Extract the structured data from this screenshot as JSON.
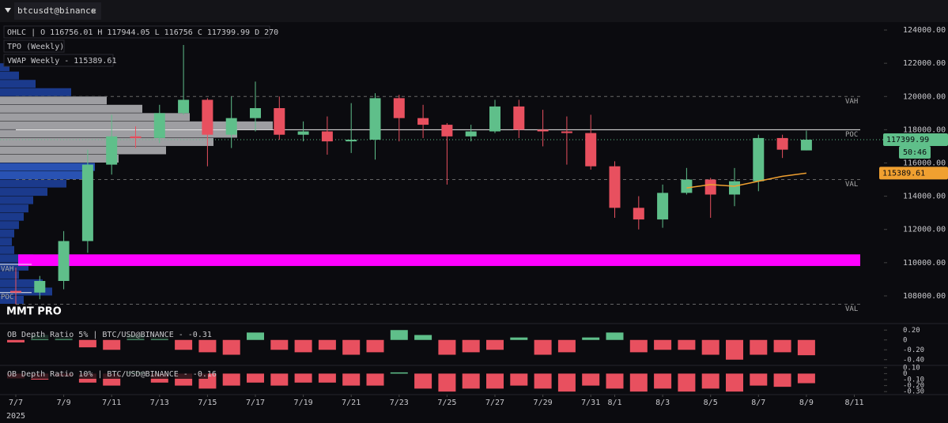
{
  "header": {
    "tab": "btcusdt@binance",
    "countdown": "50:46",
    "brand": "MMT PRO"
  },
  "chart_data": [
    {
      "type": "candlestick",
      "legend_lines": [
        "OHLC | O 116756.01 H 117944.05 L 116756 C 117399.99 D 270",
        "TPO (Weekly)",
        "VWAP Weekly - 115389.61"
      ],
      "x": [
        "2025-07-07",
        "2025-07-08",
        "2025-07-09",
        "2025-07-10",
        "2025-07-11",
        "2025-07-12",
        "2025-07-13",
        "2025-07-14",
        "2025-07-15",
        "2025-07-16",
        "2025-07-17",
        "2025-07-18",
        "2025-07-19",
        "2025-07-20",
        "2025-07-21",
        "2025-07-22",
        "2025-07-23",
        "2025-07-24",
        "2025-07-25",
        "2025-07-26",
        "2025-07-27",
        "2025-07-28",
        "2025-07-29",
        "2025-07-30",
        "2025-07-31",
        "2025-08-01",
        "2025-08-02",
        "2025-08-03",
        "2025-08-04",
        "2025-08-05",
        "2025-08-06",
        "2025-08-07",
        "2025-08-08",
        "2025-08-09"
      ],
      "open": [
        108300,
        108200,
        108900,
        111300,
        115900,
        117600,
        117500,
        119000,
        119800,
        117700,
        118700,
        119300,
        117700,
        117900,
        117300,
        117400,
        119900,
        118700,
        118300,
        117600,
        117900,
        119400,
        118000,
        117900,
        117800,
        115800,
        113300,
        112600,
        114200,
        115000,
        114100,
        114900,
        117500,
        116756.01
      ],
      "high": [
        109700,
        109200,
        111900,
        116800,
        118900,
        118200,
        119500,
        123100,
        119900,
        120000,
        120900,
        120000,
        118500,
        118800,
        119600,
        120200,
        120100,
        119500,
        118400,
        118300,
        119800,
        119800,
        119200,
        118800,
        118900,
        116100,
        114000,
        114700,
        115700,
        115100,
        115700,
        117700,
        117700,
        117944.05
      ],
      "low": [
        107500,
        107800,
        108400,
        110600,
        115300,
        116900,
        117200,
        118900,
        115800,
        116900,
        117900,
        117400,
        117300,
        116500,
        116600,
        116200,
        117300,
        117500,
        114700,
        117300,
        117800,
        117500,
        117000,
        115900,
        115600,
        112700,
        112000,
        112100,
        114100,
        112700,
        113400,
        114300,
        116300,
        116756
      ],
      "close": [
        108200,
        108900,
        111300,
        115900,
        117600,
        117500,
        119000,
        119800,
        117700,
        118700,
        119300,
        117700,
        117900,
        117300,
        117400,
        119900,
        118700,
        118300,
        117600,
        117900,
        119400,
        118000,
        117900,
        117800,
        115800,
        113300,
        112600,
        114200,
        115000,
        114100,
        114900,
        117500,
        116800,
        117399.99
      ],
      "up_color": "#5fbf8a",
      "down_color": "#e8505f",
      "vwap": {
        "color": "#f0a030",
        "x": [
          "2025-08-04",
          "2025-08-05",
          "2025-08-06",
          "2025-08-07",
          "2025-08-08",
          "2025-08-09"
        ],
        "values": [
          114500,
          114700,
          114600,
          114900,
          115200,
          115389.61
        ]
      },
      "levels": [
        {
          "label": "VAH",
          "value": 120000,
          "style": "dashed",
          "side": "right"
        },
        {
          "label": "POC",
          "value": 118000,
          "style": "solid",
          "side": "right"
        },
        {
          "label": "VAL",
          "value": 115000,
          "style": "dashed",
          "side": "right"
        },
        {
          "label": "VAL",
          "value": 107500,
          "style": "dashed",
          "side": "right"
        },
        {
          "label": "VAH",
          "value": 109900,
          "style": "solid",
          "side": "left"
        },
        {
          "label": "POC",
          "value": 108200,
          "style": "solid",
          "side": "left"
        }
      ],
      "zone": {
        "range": [
          109800,
          110500
        ],
        "color": "#ff00ff"
      },
      "tpo_profile": {
        "prices": [
          107500,
          108000,
          108500,
          109000,
          109500,
          110000,
          110500,
          111000,
          111500,
          112000,
          112500,
          113000,
          113500,
          114000,
          114500,
          115000,
          115500,
          116000,
          116500,
          117000,
          117500,
          118000,
          118500,
          119000,
          119500,
          120000,
          120500,
          121000,
          121500
        ],
        "counts": [
          10,
          22,
          18,
          8,
          12,
          14,
          6,
          5,
          6,
          8,
          10,
          12,
          14,
          20,
          28,
          35,
          40,
          50,
          70,
          90,
          100,
          115,
          80,
          60,
          45,
          30,
          15,
          8,
          4
        ]
      },
      "ylim": [
        107000,
        125000
      ],
      "yticks": [
        {
          "value": 108000,
          "label": "108000.00"
        },
        {
          "value": 110000,
          "label": "110000.00"
        },
        {
          "value": 112000,
          "label": "112000.00"
        },
        {
          "value": 114000,
          "label": "114000.00"
        },
        {
          "value": 116000,
          "label": "116000.00"
        },
        {
          "value": 118000,
          "label": "118000.00"
        },
        {
          "value": 120000,
          "label": "120000.00"
        },
        {
          "value": 122000,
          "label": "122000.00"
        },
        {
          "value": 124000,
          "label": "124000.00"
        }
      ],
      "xticks": [
        {
          "value": "2025-07-07",
          "label": "7/7"
        },
        {
          "value": "2025-07-09",
          "label": "7/9"
        },
        {
          "value": "2025-07-11",
          "label": "7/11"
        },
        {
          "value": "2025-07-13",
          "label": "7/13"
        },
        {
          "value": "2025-07-15",
          "label": "7/15"
        },
        {
          "value": "2025-07-17",
          "label": "7/17"
        },
        {
          "value": "2025-07-19",
          "label": "7/19"
        },
        {
          "value": "2025-07-21",
          "label": "7/21"
        },
        {
          "value": "2025-07-23",
          "label": "7/23"
        },
        {
          "value": "2025-07-25",
          "label": "7/25"
        },
        {
          "value": "2025-07-27",
          "label": "7/27"
        },
        {
          "value": "2025-07-29",
          "label": "7/29"
        },
        {
          "value": "2025-07-31",
          "label": "7/31"
        },
        {
          "value": "2025-08-01",
          "label": "8/1"
        },
        {
          "value": "2025-08-03",
          "label": "8/3"
        },
        {
          "value": "2025-08-05",
          "label": "8/5"
        },
        {
          "value": "2025-08-07",
          "label": "8/7"
        },
        {
          "value": "2025-08-09",
          "label": "8/9"
        },
        {
          "value": "2025-08-11",
          "label": "8/11"
        }
      ],
      "year_label": "2025"
    },
    {
      "type": "bar",
      "title": "OB Depth Ratio 5% | BTC/USD@BINANCE - -0.31",
      "values": [
        -0.05,
        0.1,
        0.05,
        -0.15,
        -0.2,
        0.1,
        0.05,
        -0.2,
        -0.25,
        -0.3,
        0.15,
        -0.2,
        -0.25,
        -0.2,
        -0.3,
        -0.25,
        0.2,
        0.1,
        -0.3,
        -0.25,
        -0.2,
        0.05,
        -0.3,
        -0.25,
        0.05,
        0.15,
        -0.25,
        -0.2,
        -0.2,
        -0.3,
        -0.4,
        -0.3,
        -0.25,
        -0.31
      ],
      "up_color": "#5fbf8a",
      "down_color": "#e8505f",
      "ylim": [
        -0.5,
        0.3
      ],
      "yticks": [
        {
          "value": 0.2,
          "label": "0.20"
        },
        0,
        {
          "value": -0.2,
          "label": "-0.20"
        },
        {
          "value": -0.4,
          "label": "-0.40"
        }
      ]
    },
    {
      "type": "bar",
      "title": "OB Depth Ratio 10% | BTC/USD@BINANCE - -0.16",
      "values": [
        -0.08,
        -0.1,
        -0.05,
        -0.15,
        -0.2,
        0.03,
        -0.15,
        -0.2,
        -0.25,
        -0.2,
        -0.15,
        -0.2,
        -0.15,
        -0.15,
        -0.2,
        -0.2,
        0.02,
        -0.25,
        -0.3,
        -0.25,
        -0.25,
        -0.2,
        -0.25,
        -0.3,
        -0.2,
        -0.25,
        -0.3,
        -0.25,
        -0.3,
        -0.25,
        -0.3,
        -0.2,
        -0.22,
        -0.16
      ],
      "up_color": "#5fbf8a",
      "down_color": "#e8505f",
      "ylim": [
        -0.35,
        0.15
      ],
      "yticks": [
        {
          "value": 0.1,
          "label": "0.10"
        },
        0,
        {
          "value": -0.1,
          "label": "-0.10"
        },
        {
          "value": -0.2,
          "label": "-0.20"
        },
        {
          "value": -0.3,
          "label": "-0.30"
        }
      ]
    }
  ]
}
